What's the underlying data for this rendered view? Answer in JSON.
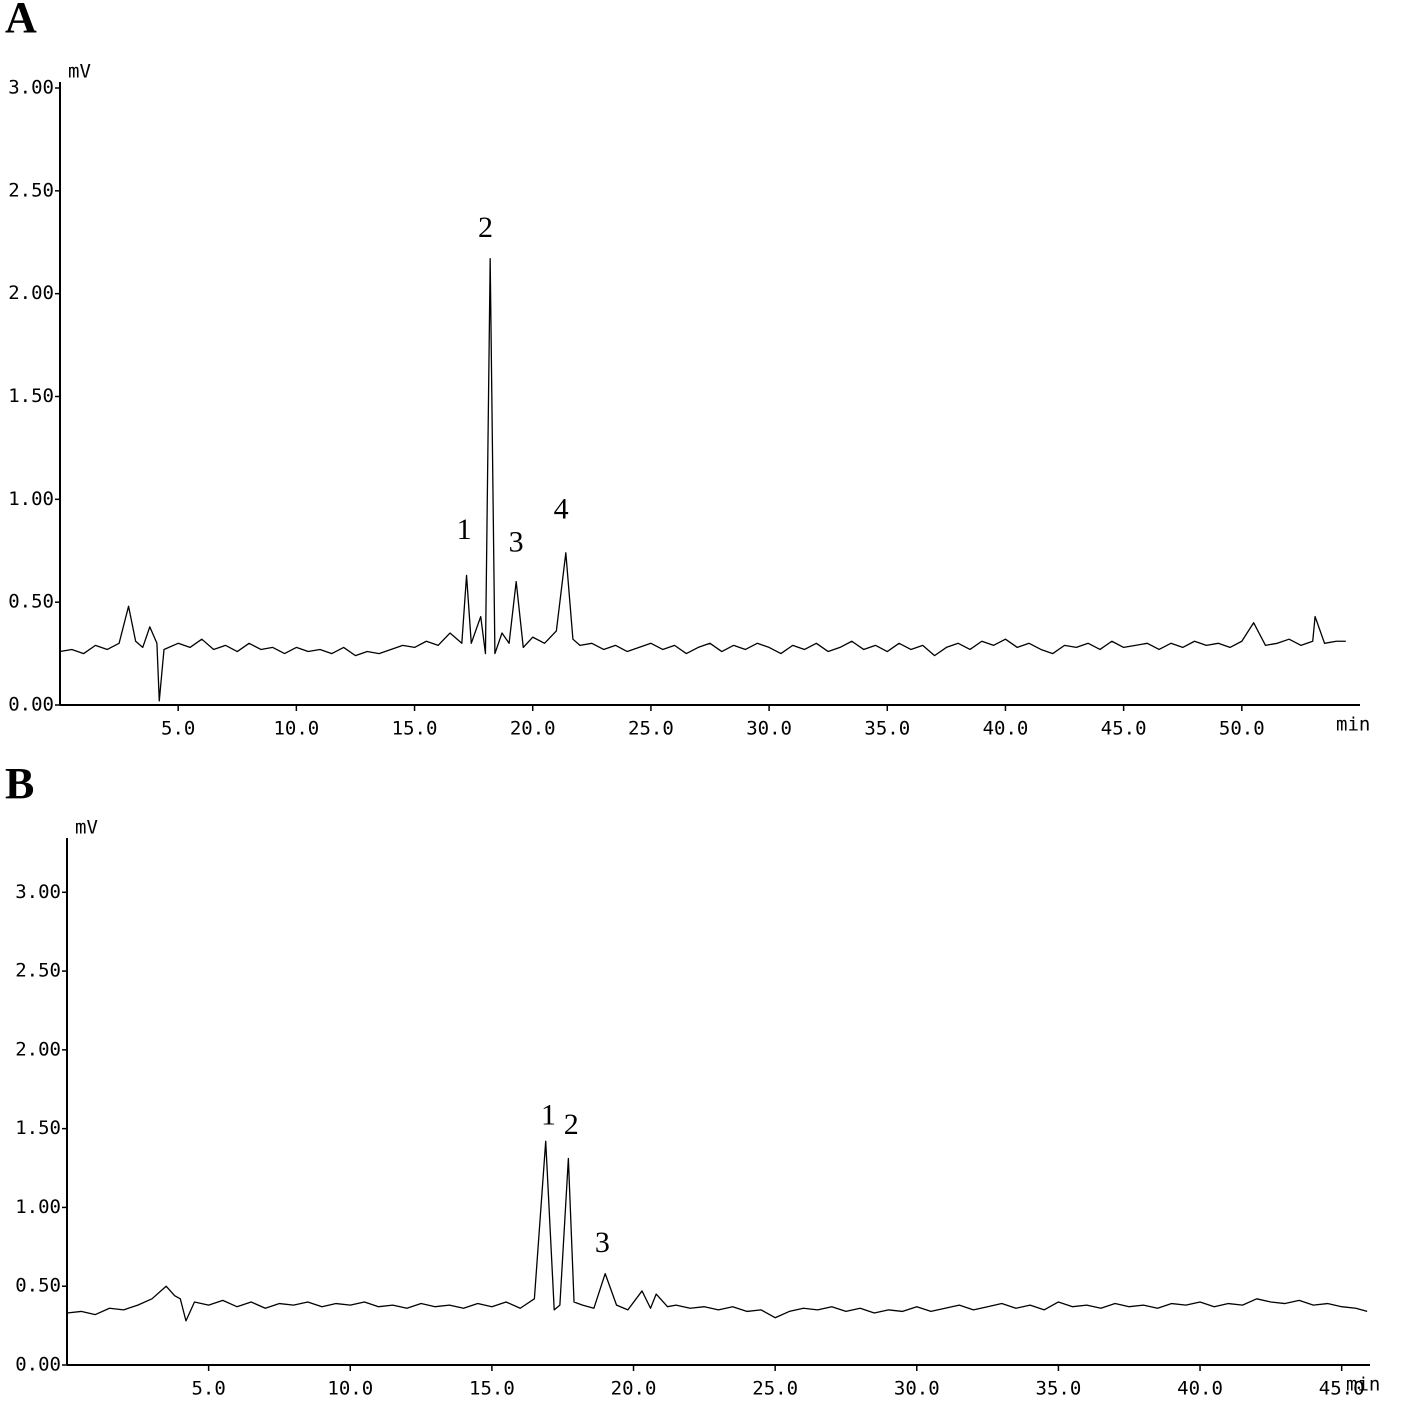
{
  "chart_data": [
    {
      "type": "line",
      "panel_label": "A",
      "y_unit": "mV",
      "x_unit": "min",
      "color": "#000000",
      "xlim": [
        0,
        55
      ],
      "ylim": [
        0,
        3.0
      ],
      "xticks": [
        {
          "value": 5,
          "label": "5.0"
        },
        {
          "value": 10,
          "label": "10.0"
        },
        {
          "value": 15,
          "label": "15.0"
        },
        {
          "value": 20,
          "label": "20.0"
        },
        {
          "value": 25,
          "label": "25.0"
        },
        {
          "value": 30,
          "label": "30.0"
        },
        {
          "value": 35,
          "label": "35.0"
        },
        {
          "value": 40,
          "label": "40.0"
        },
        {
          "value": 45,
          "label": "45.0"
        },
        {
          "value": 50,
          "label": "50.0"
        }
      ],
      "yticks": [
        {
          "value": 0,
          "label": "0.00"
        },
        {
          "value": 0.5,
          "label": "0.50"
        },
        {
          "value": 1,
          "label": "1.00"
        },
        {
          "value": 1.5,
          "label": "1.50"
        },
        {
          "value": 2,
          "label": "2.00"
        },
        {
          "value": 2.5,
          "label": "2.50"
        },
        {
          "value": 3,
          "label": "3.00"
        }
      ],
      "x": [
        0,
        0.5,
        1,
        1.5,
        2,
        2.5,
        2.9,
        3.2,
        3.5,
        3.8,
        4.1,
        4.2,
        4.4,
        5,
        5.5,
        6,
        6.5,
        7,
        7.5,
        8,
        8.5,
        9,
        9.5,
        10,
        10.5,
        11,
        11.5,
        12,
        12.5,
        13,
        13.5,
        14,
        14.5,
        15,
        15.5,
        16,
        16.5,
        17,
        17.2,
        17.4,
        17.8,
        18,
        18.2,
        18.4,
        18.7,
        19,
        19.3,
        19.6,
        20,
        20.5,
        21,
        21.4,
        21.7,
        22,
        22.5,
        23,
        23.5,
        24,
        24.5,
        25,
        25.5,
        26,
        26.5,
        27,
        27.5,
        28,
        28.5,
        29,
        29.5,
        30,
        30.5,
        31,
        31.5,
        32,
        32.5,
        33,
        33.5,
        34,
        34.5,
        35,
        35.5,
        36,
        36.5,
        37,
        37.5,
        38,
        38.5,
        39,
        39.5,
        40,
        40.5,
        41,
        41.5,
        42,
        42.5,
        43,
        43.5,
        44,
        44.5,
        45,
        45.5,
        46,
        46.5,
        47,
        47.5,
        48,
        48.5,
        49,
        49.5,
        50,
        50.5,
        51,
        51.5,
        52,
        52.5,
        53,
        53.1,
        53.5,
        54,
        54.4
      ],
      "values": [
        0.26,
        0.27,
        0.25,
        0.29,
        0.27,
        0.3,
        0.48,
        0.31,
        0.28,
        0.38,
        0.3,
        0.02,
        0.27,
        0.3,
        0.28,
        0.32,
        0.27,
        0.29,
        0.26,
        0.3,
        0.27,
        0.28,
        0.25,
        0.28,
        0.26,
        0.27,
        0.25,
        0.28,
        0.24,
        0.26,
        0.25,
        0.27,
        0.29,
        0.28,
        0.31,
        0.29,
        0.35,
        0.3,
        0.63,
        0.3,
        0.43,
        0.25,
        2.17,
        0.25,
        0.35,
        0.3,
        0.6,
        0.28,
        0.33,
        0.3,
        0.36,
        0.74,
        0.32,
        0.29,
        0.3,
        0.27,
        0.29,
        0.26,
        0.28,
        0.3,
        0.27,
        0.29,
        0.25,
        0.28,
        0.3,
        0.26,
        0.29,
        0.27,
        0.3,
        0.28,
        0.25,
        0.29,
        0.27,
        0.3,
        0.26,
        0.28,
        0.31,
        0.27,
        0.29,
        0.26,
        0.3,
        0.27,
        0.29,
        0.24,
        0.28,
        0.3,
        0.27,
        0.31,
        0.29,
        0.32,
        0.28,
        0.3,
        0.27,
        0.25,
        0.29,
        0.28,
        0.3,
        0.27,
        0.31,
        0.28,
        0.29,
        0.3,
        0.27,
        0.3,
        0.28,
        0.31,
        0.29,
        0.3,
        0.28,
        0.31,
        0.4,
        0.29,
        0.3,
        0.32,
        0.29,
        0.31,
        0.43,
        0.3,
        0.31,
        0.31
      ],
      "annotations": [
        {
          "text": "1",
          "x": 17.1,
          "y": 0.84
        },
        {
          "text": "2",
          "x": 18.0,
          "y": 2.31
        },
        {
          "text": "3",
          "x": 19.3,
          "y": 0.78
        },
        {
          "text": "4",
          "x": 21.2,
          "y": 0.94
        }
      ]
    },
    {
      "type": "line",
      "panel_label": "B",
      "y_unit": "mV",
      "x_unit": "min",
      "color": "#000000",
      "xlim": [
        0,
        46
      ],
      "ylim": [
        0,
        3.3
      ],
      "xticks": [
        {
          "value": 5,
          "label": "5.0"
        },
        {
          "value": 10,
          "label": "10.0"
        },
        {
          "value": 15,
          "label": "15.0"
        },
        {
          "value": 20,
          "label": "20.0"
        },
        {
          "value": 25,
          "label": "25.0"
        },
        {
          "value": 30,
          "label": "30.0"
        },
        {
          "value": 35,
          "label": "35.0"
        },
        {
          "value": 40,
          "label": "40.0"
        },
        {
          "value": 45,
          "label": "45.0"
        }
      ],
      "yticks": [
        {
          "value": 0,
          "label": "0.00"
        },
        {
          "value": 0.5,
          "label": "0.50"
        },
        {
          "value": 1,
          "label": "1.00"
        },
        {
          "value": 1.5,
          "label": "1.50"
        },
        {
          "value": 2,
          "label": "2.00"
        },
        {
          "value": 2.5,
          "label": "2.50"
        },
        {
          "value": 3,
          "label": "3.00"
        }
      ],
      "x": [
        0,
        0.5,
        1,
        1.5,
        2,
        2.5,
        3,
        3.5,
        3.8,
        4,
        4.2,
        4.5,
        5,
        5.5,
        6,
        6.5,
        7,
        7.5,
        8,
        8.5,
        9,
        9.5,
        10,
        10.5,
        11,
        11.5,
        12,
        12.5,
        13,
        13.5,
        14,
        14.5,
        15,
        15.5,
        16,
        16.5,
        16.9,
        17.2,
        17.4,
        17.7,
        17.9,
        18.2,
        18.6,
        19,
        19.4,
        19.8,
        20.3,
        20.6,
        20.8,
        21.2,
        21.5,
        22,
        22.5,
        23,
        23.5,
        24,
        24.5,
        25,
        25.5,
        26,
        26.5,
        27,
        27.5,
        28,
        28.5,
        29,
        29.5,
        30,
        30.5,
        31,
        31.5,
        32,
        32.5,
        33,
        33.5,
        34,
        34.5,
        35,
        35.5,
        36,
        36.5,
        37,
        37.5,
        38,
        38.5,
        39,
        39.5,
        40,
        40.5,
        41,
        41.5,
        42,
        42.5,
        43,
        43.5,
        44,
        44.5,
        45,
        45.5,
        45.9
      ],
      "values": [
        0.33,
        0.34,
        0.32,
        0.36,
        0.35,
        0.38,
        0.42,
        0.5,
        0.44,
        0.42,
        0.28,
        0.4,
        0.38,
        0.41,
        0.37,
        0.4,
        0.36,
        0.39,
        0.38,
        0.4,
        0.37,
        0.39,
        0.38,
        0.4,
        0.37,
        0.38,
        0.36,
        0.39,
        0.37,
        0.38,
        0.36,
        0.39,
        0.37,
        0.4,
        0.36,
        0.42,
        1.42,
        0.35,
        0.38,
        1.31,
        0.4,
        0.38,
        0.36,
        0.58,
        0.38,
        0.35,
        0.47,
        0.36,
        0.45,
        0.37,
        0.38,
        0.36,
        0.37,
        0.35,
        0.37,
        0.34,
        0.35,
        0.3,
        0.34,
        0.36,
        0.35,
        0.37,
        0.34,
        0.36,
        0.33,
        0.35,
        0.34,
        0.37,
        0.34,
        0.36,
        0.38,
        0.35,
        0.37,
        0.39,
        0.36,
        0.38,
        0.35,
        0.4,
        0.37,
        0.38,
        0.36,
        0.39,
        0.37,
        0.38,
        0.36,
        0.39,
        0.38,
        0.4,
        0.37,
        0.39,
        0.38,
        0.42,
        0.4,
        0.39,
        0.41,
        0.38,
        0.39,
        0.37,
        0.36,
        0.34
      ],
      "annotations": [
        {
          "text": "1",
          "x": 17.0,
          "y": 1.57
        },
        {
          "text": "2",
          "x": 17.8,
          "y": 1.51
        },
        {
          "text": "3",
          "x": 18.9,
          "y": 0.76
        }
      ]
    }
  ]
}
